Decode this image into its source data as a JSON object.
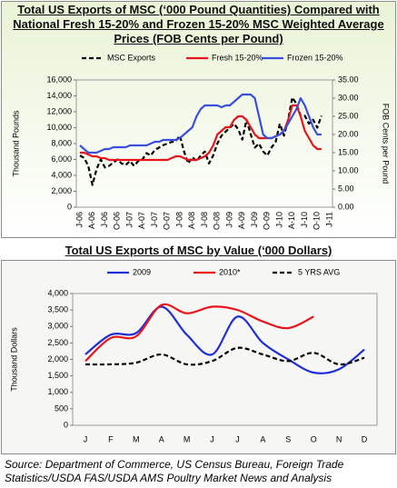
{
  "chart_data": [
    {
      "type": "line",
      "title": "Total US Exports of MSC (‘000 Pound Quantities) Compared with National Fresh 15-20% and Frozen 15-20% MSC Weighted Average Prices (FOB Cents per Pound)",
      "y_label": "Thousand Pounds",
      "y2_label": "FOB Cents per Pound",
      "categories": [
        "J-06",
        null,
        null,
        "A-06",
        null,
        null,
        "J-06",
        null,
        null,
        "O-06",
        null,
        null,
        "J-07",
        null,
        null,
        "A-07",
        null,
        null,
        "J-07",
        null,
        null,
        "O-07",
        null,
        null,
        "J-08",
        null,
        null,
        "A-08",
        null,
        null,
        "J-08",
        null,
        null,
        "O-08",
        null,
        null,
        "J-09",
        null,
        null,
        "A-09",
        null,
        null,
        "J-09",
        null,
        null,
        "O-09",
        null,
        null,
        "J-10",
        null,
        null,
        "A-10",
        null,
        null,
        "J-10",
        null,
        null,
        "O-10",
        null,
        null,
        "J-11"
      ],
      "series": [
        {
          "name": "MSC Exports",
          "color": "#000000",
          "style": "dashed",
          "values": [
            6500,
            6200,
            5200,
            2800,
            4800,
            6000,
            5000,
            5200,
            5600,
            6000,
            5500,
            5300,
            5800,
            5200,
            5800,
            6000,
            6800,
            6500,
            7200,
            7500,
            7800,
            8000,
            8200,
            8300,
            9000,
            7000,
            5500,
            6300,
            5800,
            6500,
            7000,
            5500,
            6500,
            8000,
            9000,
            9500,
            10000,
            10500,
            9800,
            8500,
            11000,
            9200,
            7500,
            8000,
            7000,
            6500,
            7500,
            8200,
            10500,
            9000,
            11000,
            13800,
            13000,
            11500,
            11500,
            10500,
            11000,
            10000,
            11500,
            null,
            null
          ]
        },
        {
          "name": "Fresh 15-20%",
          "color": "#e8141b",
          "style": "solid",
          "axis": "y2",
          "values": [
            15,
            15,
            14.5,
            14,
            14,
            13.5,
            13.5,
            13,
            13,
            13,
            13,
            13,
            13,
            13,
            13,
            13,
            13,
            13,
            13,
            13,
            13,
            13,
            13.5,
            14,
            14,
            13.5,
            13,
            13,
            13,
            13.5,
            14,
            15,
            17,
            20,
            21,
            22,
            22,
            24,
            25,
            25,
            24,
            22,
            20,
            19,
            19,
            19,
            19,
            19.5,
            20,
            21,
            24,
            28,
            28,
            25,
            21,
            19,
            17,
            16,
            16,
            null,
            null
          ]
        },
        {
          "name": "Frozen 15-20%",
          "color": "#3a4fe0",
          "style": "solid",
          "axis": "y2",
          "values": [
            17,
            16,
            15,
            15,
            15,
            15.5,
            16,
            16,
            16.5,
            16.5,
            16.5,
            16.5,
            17,
            17,
            17,
            17,
            17,
            17.5,
            18,
            18,
            18.5,
            18.5,
            18.5,
            18.5,
            19,
            20,
            21,
            22,
            25,
            27,
            28,
            28,
            28,
            28,
            27.5,
            28,
            28,
            29,
            30,
            31,
            31,
            31,
            30,
            25,
            20,
            19,
            19,
            19.5,
            20,
            21,
            23,
            25,
            27,
            30,
            28,
            25,
            22,
            20,
            20,
            null,
            null
          ]
        }
      ],
      "ylim": [
        0,
        16000
      ],
      "yticks": [
        0,
        {
          "value": 2000,
          "label": "2,000"
        },
        {
          "value": 4000,
          "label": "4,000"
        },
        {
          "value": 6000,
          "label": "6,000"
        },
        {
          "value": 8000,
          "label": "8,000"
        },
        {
          "value": 10000,
          "label": "10,000"
        },
        {
          "value": 12000,
          "label": "12,000"
        },
        {
          "value": 14000,
          "label": "14,000"
        },
        {
          "value": 16000,
          "label": "16,000"
        }
      ],
      "y2lim": [
        0,
        35
      ],
      "y2ticks": [
        {
          "value": 0,
          "label": "0.00"
        },
        {
          "value": 5,
          "label": "5.00"
        },
        {
          "value": 10,
          "label": "10.00"
        },
        {
          "value": 15,
          "label": "15.00"
        },
        {
          "value": 20,
          "label": "20.00"
        },
        {
          "value": 25,
          "label": "25.00"
        },
        {
          "value": 30,
          "label": "30.00"
        },
        {
          "value": 35,
          "label": "35.00"
        }
      ],
      "grid": false,
      "legend": "top",
      "smooth": false
    },
    {
      "type": "line",
      "title": "Total US Exports of MSC by Value (‘000 Dollars)",
      "y_label": "Thousand Dollars",
      "categories": [
        "J",
        "F",
        "M",
        "A",
        "M",
        "J",
        "J",
        "A",
        "S",
        "O",
        "N",
        "D"
      ],
      "series": [
        {
          "name": "2009",
          "color": "#1f2fd6",
          "style": "solid",
          "values": [
            2150,
            2750,
            2800,
            3600,
            2750,
            2150,
            3300,
            2500,
            2000,
            1600,
            1700,
            2300
          ]
        },
        {
          "name": "2010*",
          "color": "#e8141b",
          "style": "solid",
          "values": [
            1950,
            2650,
            2700,
            3650,
            3400,
            3600,
            3500,
            3150,
            2950,
            3300,
            null,
            null
          ]
        },
        {
          "name": "5 YRS AVG",
          "color": "#000000",
          "style": "dashed",
          "values": [
            1850,
            1850,
            1900,
            2150,
            1850,
            1950,
            2350,
            2150,
            1950,
            2200,
            1850,
            2050
          ]
        }
      ],
      "ylim": [
        0,
        4000
      ],
      "yticks": [
        0,
        500,
        {
          "value": 1000,
          "label": "1,000"
        },
        {
          "value": 1500,
          "label": "1,500"
        },
        {
          "value": 2000,
          "label": "2,000"
        },
        {
          "value": 2500,
          "label": "2,500"
        },
        {
          "value": 3000,
          "label": "3,000"
        },
        {
          "value": 3500,
          "label": "3,500"
        },
        {
          "value": 4000,
          "label": "4,000"
        }
      ],
      "grid": false,
      "legend": "top",
      "smooth": true
    }
  ],
  "source": "Source: Department of Commerce, US Census Bureau, Foreign Trade Statistics/USDA FAS/USDA AMS Poultry Market News and Analysis"
}
